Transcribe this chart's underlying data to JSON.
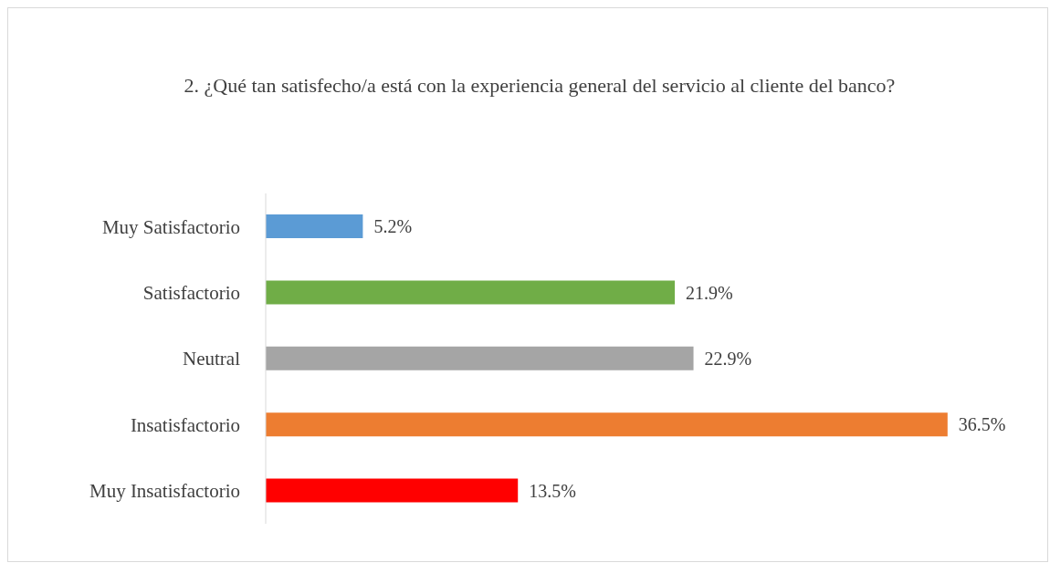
{
  "chart_data": {
    "type": "bar",
    "orientation": "horizontal",
    "title": "2. ¿Qué tan satisfecho/a está con la experiencia general del servicio al cliente del banco?",
    "categories": [
      "Muy Satisfactorio",
      "Satisfactorio",
      "Neutral",
      "Insatisfactorio",
      "Muy Insatisfactorio"
    ],
    "values": [
      5.2,
      21.9,
      22.9,
      36.5,
      13.5
    ],
    "colors": [
      "#5b9bd5",
      "#70ad47",
      "#a5a5a5",
      "#ed7d31",
      "#ff0000"
    ],
    "value_labels": [
      "5.2%",
      "21.9%",
      "22.9%",
      "36.5%",
      "13.5%"
    ],
    "grid": false,
    "legend": false
  }
}
